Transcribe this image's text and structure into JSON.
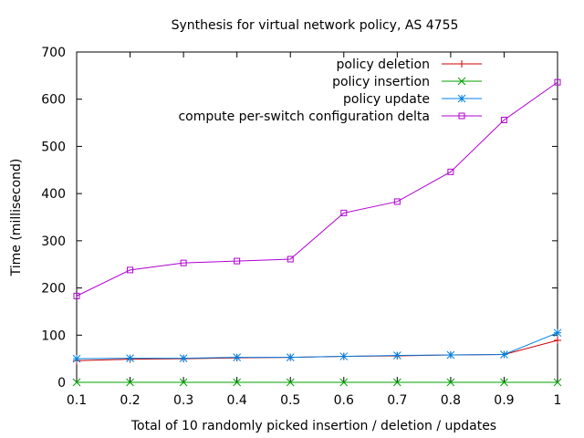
{
  "chart_data": {
    "type": "line",
    "title": "Synthesis for virtual network policy, AS 4755",
    "xlabel": "Total of 10 randomly picked insertion / deletion / updates",
    "ylabel": "Time (millisecond)",
    "xlim": [
      0.1,
      1.0
    ],
    "ylim": [
      0,
      700
    ],
    "x_ticks": [
      "0.1",
      "0.2",
      "0.3",
      "0.4",
      "0.5",
      "0.6",
      "0.7",
      "0.8",
      "0.9",
      "1"
    ],
    "y_ticks": [
      "0",
      "100",
      "200",
      "300",
      "400",
      "500",
      "600",
      "700"
    ],
    "grid": false,
    "legend_position": "top-right",
    "x": [
      0.1,
      0.2,
      0.3,
      0.4,
      0.5,
      0.6,
      0.7,
      0.8,
      0.9,
      1.0
    ],
    "series": [
      {
        "name": "policy deletion",
        "color": "#cc0000",
        "marker": "plus",
        "values": [
          46,
          49,
          50,
          52,
          53,
          55,
          56,
          58,
          59,
          89
        ]
      },
      {
        "name": "policy insertion",
        "color": "#00a000",
        "marker": "cross",
        "values": [
          0,
          0,
          0,
          0,
          0,
          0,
          0,
          0,
          0,
          0
        ]
      },
      {
        "name": "policy update",
        "color": "#0080e0",
        "marker": "star",
        "values": [
          50,
          51,
          51,
          53,
          53,
          55,
          57,
          58,
          59,
          105
        ]
      },
      {
        "name": "compute per-switch configuration delta",
        "color": "#b000d0",
        "marker": "square",
        "values": [
          183,
          238,
          253,
          257,
          261,
          359,
          383,
          446,
          556,
          636
        ]
      }
    ]
  }
}
